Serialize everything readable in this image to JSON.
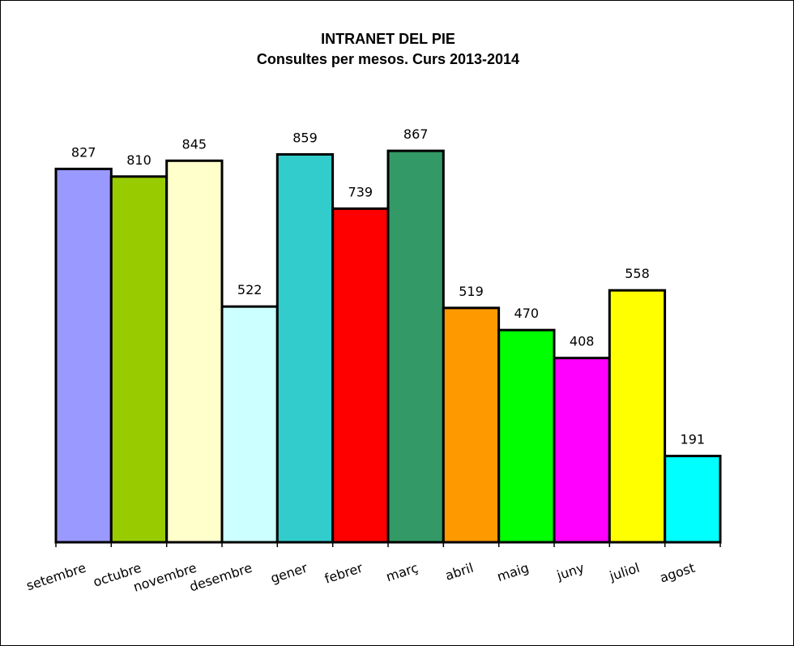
{
  "chart_data": {
    "type": "bar",
    "title": "INTRANET DEL PIE",
    "subtitle": "Consultes per mesos. Curs 2013-2014",
    "xlabel": "",
    "ylabel": "",
    "ylim": [
      0,
      1000
    ],
    "grid": false,
    "legend": "none",
    "categories": [
      "setembre",
      "octubre",
      "novembre",
      "desembre",
      "gener",
      "febrer",
      "març",
      "abril",
      "maig",
      "juny",
      "juliol",
      "agost"
    ],
    "values": [
      827,
      810,
      845,
      522,
      859,
      739,
      867,
      519,
      470,
      408,
      558,
      191
    ],
    "colors": [
      "#9999FF",
      "#99CC00",
      "#FFFFCC",
      "#CCFFFF",
      "#33CCCC",
      "#FF0000",
      "#339966",
      "#FF9900",
      "#00FF00",
      "#FF00FF",
      "#FFFF00",
      "#00FFFF"
    ]
  }
}
